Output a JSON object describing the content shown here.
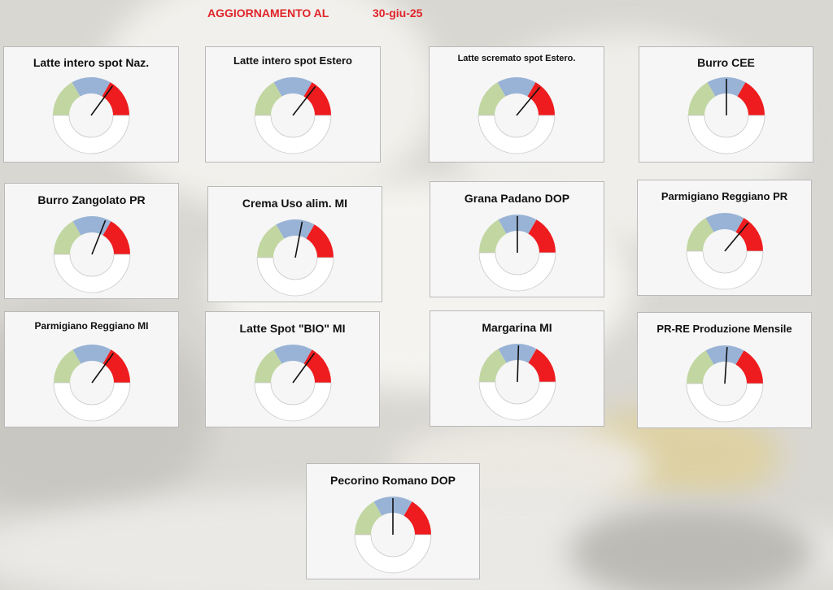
{
  "header": {
    "label": "AGGIORNAMENTO AL",
    "date": "30-giu-25"
  },
  "colors": {
    "green": "#c2d6a2",
    "blue": "#99b3d6",
    "red": "#ee1c1e",
    "empty": "#ffffff",
    "needle": "#111111",
    "header": "#e0242a"
  },
  "chart_data": [
    {
      "type": "gauge",
      "title": "Latte intero spot Naz.",
      "value": 0.7,
      "ylim": [
        0,
        1
      ]
    },
    {
      "type": "gauge",
      "title": "Latte intero spot Estero",
      "value": 0.71,
      "ylim": [
        0,
        1
      ]
    },
    {
      "type": "gauge",
      "title": "Latte scremato spot Estero.",
      "value": 0.72,
      "ylim": [
        0,
        1
      ]
    },
    {
      "type": "gauge",
      "title": "Burro CEE",
      "value": 0.5,
      "ylim": [
        0,
        1
      ]
    },
    {
      "type": "gauge",
      "title": "Burro Zangolato PR",
      "value": 0.62,
      "ylim": [
        0,
        1
      ]
    },
    {
      "type": "gauge",
      "title": "Crema Uso alim. MI",
      "value": 0.56,
      "ylim": [
        0,
        1
      ]
    },
    {
      "type": "gauge",
      "title": "Grana Padano DOP",
      "value": 0.5,
      "ylim": [
        0,
        1
      ]
    },
    {
      "type": "gauge",
      "title": "Parmigiano Reggiano PR",
      "value": 0.72,
      "ylim": [
        0,
        1
      ]
    },
    {
      "type": "gauge",
      "title": "Parmigiano Reggiano MI",
      "value": 0.7,
      "ylim": [
        0,
        1
      ]
    },
    {
      "type": "gauge",
      "title": "Latte Spot \"BIO\" MI",
      "value": 0.7,
      "ylim": [
        0,
        1
      ]
    },
    {
      "type": "gauge",
      "title": "Margarina MI",
      "value": 0.51,
      "ylim": [
        0,
        1
      ]
    },
    {
      "type": "gauge",
      "title": "PR-RE Produzione Mensile",
      "value": 0.52,
      "ylim": [
        0,
        1
      ]
    },
    {
      "type": "gauge",
      "title": "Pecorino Romano DOP",
      "value": 0.5,
      "ylim": [
        0,
        1
      ]
    }
  ]
}
